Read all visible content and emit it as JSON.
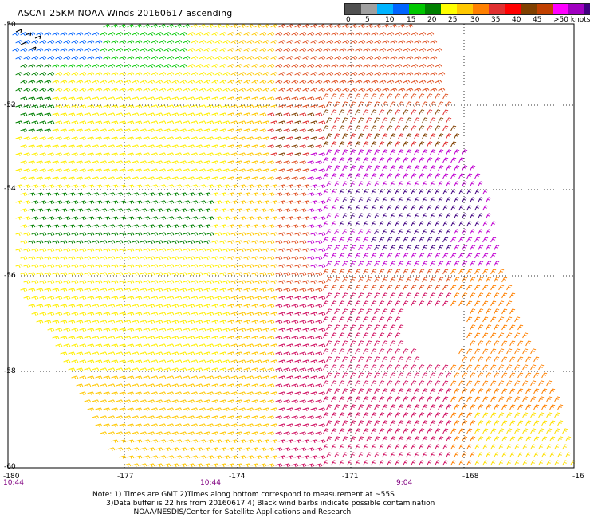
{
  "title": "ASCAT 25KM NOAA Winds 20160617 ascending",
  "legend": {
    "colors": [
      "#505050",
      "#a0a0a0",
      "#00b4ff",
      "#0064ff",
      "#00c800",
      "#008000",
      "#ffff00",
      "#ffc800",
      "#ff8000",
      "#e03030",
      "#ff0000",
      "#804000",
      "#c04000",
      "#ff00ff",
      "#a000c0",
      "#400080"
    ],
    "tick_labels": [
      "0",
      "5",
      "10",
      "15",
      "20",
      "25",
      "30",
      "35",
      "40",
      "45",
      ">50 knots"
    ]
  },
  "axes": {
    "lat_labels": [
      "-50",
      "-52",
      "-54",
      "-56",
      "-58",
      "-60"
    ],
    "lon_labels": [
      "-180",
      "-177",
      "-174",
      "-171",
      "-168",
      "-16"
    ],
    "time_labels": [
      "10:44",
      "10:44",
      "9:04"
    ]
  },
  "notes": [
    "Note: 1) Times are GMT 2)Times along bottom correspond to measurement at ~55S",
    "      3)Data buffer is 22 hrs from 20160617 4) Black wind barbs indicate possible contamination",
    "                  NOAA/NESDIS/Center for Satellite Applications and Research"
  ]
}
